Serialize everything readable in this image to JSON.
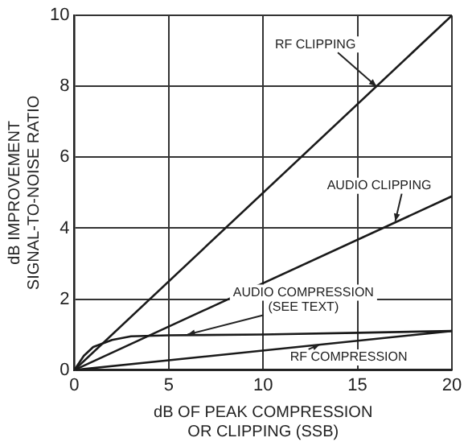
{
  "chart_data": {
    "type": "line",
    "xlabel": "dB OF PEAK COMPRESSION\nOR CLIPPING (SSB)",
    "ylabel": "dB IMPROVEMENT\nSIGNAL-TO-NOISE RATIO",
    "xlim": [
      0,
      20
    ],
    "xticks": [
      0,
      5,
      10,
      15,
      20
    ],
    "ylim": [
      0,
      10
    ],
    "yticks": [
      0,
      2,
      4,
      6,
      8,
      10
    ],
    "grid": true,
    "legend": false,
    "marker": "none",
    "line_style": "solid",
    "series": [
      {
        "color": "#1a1a1a",
        "x": [
          0,
          20
        ],
        "values": [
          0,
          10
        ]
      },
      {
        "color": "#1a1a1a",
        "x": [
          0,
          20
        ],
        "values": [
          0,
          4.9
        ]
      },
      {
        "color": "#1a1a1a",
        "x": [
          0,
          0.5,
          1,
          2,
          3,
          5,
          10,
          15,
          20
        ],
        "values": [
          0,
          0.4,
          0.65,
          0.85,
          0.95,
          0.98,
          1.0,
          1.05,
          1.1
        ]
      },
      {
        "color": "#1a1a1a",
        "x": [
          0,
          20
        ],
        "values": [
          0,
          1.1
        ]
      }
    ],
    "annotations": [
      {
        "text": "RF CLIPPING",
        "x": 16,
        "y": 8
      },
      {
        "text": "AUDIO CLIPPING",
        "x": 17,
        "y": 4.2
      },
      {
        "text": "AUDIO COMPRESSION\n(SEE TEXT)",
        "x": 6,
        "y": 1.0
      },
      {
        "text": "RF COMPRESSION",
        "x": 13,
        "y": 0.72
      }
    ]
  }
}
